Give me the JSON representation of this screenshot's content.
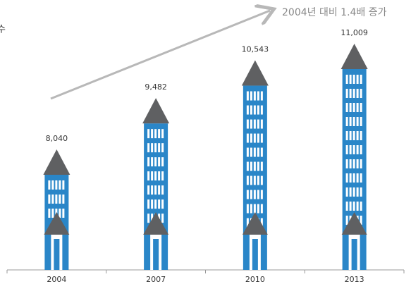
{
  "chart_data": {
    "type": "pictogram-bar",
    "subtitle": "수",
    "annotation": "2004년 대비 1.4배 증가",
    "categories": [
      "2004",
      "2007",
      "2010",
      "2013"
    ],
    "values": [
      8040,
      9482,
      10543,
      11009
    ],
    "value_labels": [
      "8,040",
      "9,482",
      "10,543",
      "11,009"
    ],
    "color": "#2a86c8",
    "roof_color": "#5f6062"
  }
}
